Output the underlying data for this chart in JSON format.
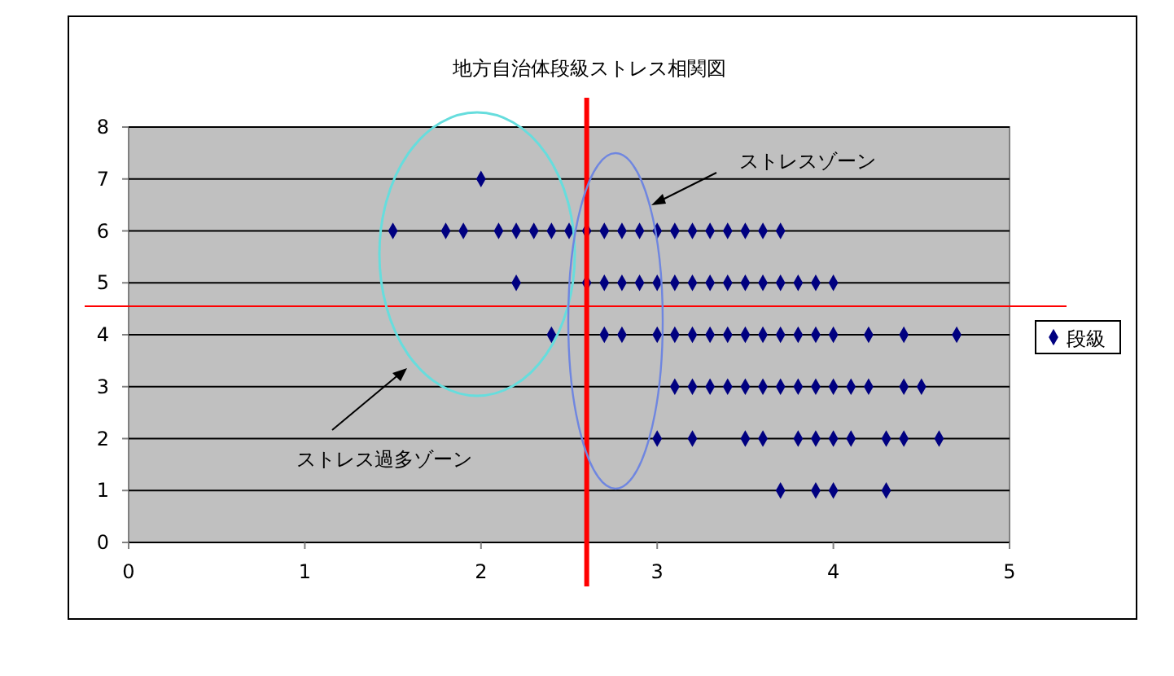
{
  "chart_data": {
    "type": "scatter",
    "title": "地方自治体段級ストレス相関図",
    "series": [
      {
        "name": "段級",
        "color": "#000080",
        "x": [
          2.0,
          1.5,
          1.8,
          1.9,
          2.1,
          2.2,
          2.3,
          2.4,
          2.5,
          2.6,
          2.7,
          2.8,
          2.9,
          3.0,
          3.1,
          3.2,
          3.3,
          3.4,
          3.5,
          3.6,
          3.7,
          2.2,
          2.6,
          2.7,
          2.8,
          2.9,
          3.0,
          3.1,
          3.2,
          3.3,
          3.4,
          3.5,
          3.6,
          3.7,
          3.8,
          3.9,
          4.0,
          2.4,
          2.7,
          2.8,
          3.0,
          3.1,
          3.2,
          3.3,
          3.4,
          3.5,
          3.6,
          3.7,
          3.8,
          3.9,
          4.0,
          4.2,
          4.4,
          4.7,
          3.1,
          3.2,
          3.3,
          3.4,
          3.5,
          3.6,
          3.7,
          3.8,
          3.9,
          4.0,
          4.1,
          4.2,
          4.4,
          4.5,
          3.0,
          3.2,
          3.5,
          3.6,
          3.8,
          3.9,
          4.0,
          4.1,
          4.3,
          4.4,
          4.6,
          3.7,
          3.9,
          4.0,
          4.3
        ],
        "values": [
          7,
          6,
          6,
          6,
          6,
          6,
          6,
          6,
          6,
          6,
          6,
          6,
          6,
          6,
          6,
          6,
          6,
          6,
          6,
          6,
          6,
          5,
          5,
          5,
          5,
          5,
          5,
          5,
          5,
          5,
          5,
          5,
          5,
          5,
          5,
          5,
          5,
          4,
          4,
          4,
          4,
          4,
          4,
          4,
          4,
          4,
          4,
          4,
          4,
          4,
          4,
          4,
          4,
          4,
          3,
          3,
          3,
          3,
          3,
          3,
          3,
          3,
          3,
          3,
          3,
          3,
          3,
          3,
          2,
          2,
          2,
          2,
          2,
          2,
          2,
          2,
          2,
          2,
          2,
          1,
          1,
          1,
          1
        ]
      }
    ],
    "xlim": [
      0,
      5
    ],
    "xticks": [
      0,
      1,
      2,
      3,
      4,
      5
    ],
    "ylim": [
      0,
      8
    ],
    "yticks": [
      0,
      1,
      2,
      3,
      4,
      5,
      6,
      7,
      8
    ],
    "grid": "y",
    "legend": "right",
    "marker": "diamond",
    "ref_lines": [
      {
        "axis": "x",
        "value": 2.6,
        "color": "#ff0000"
      },
      {
        "axis": "y",
        "value": 4.55,
        "color": "#ff0000"
      }
    ],
    "annotations": [
      "ストレスゾーン",
      "ストレス過多ゾーン"
    ]
  }
}
